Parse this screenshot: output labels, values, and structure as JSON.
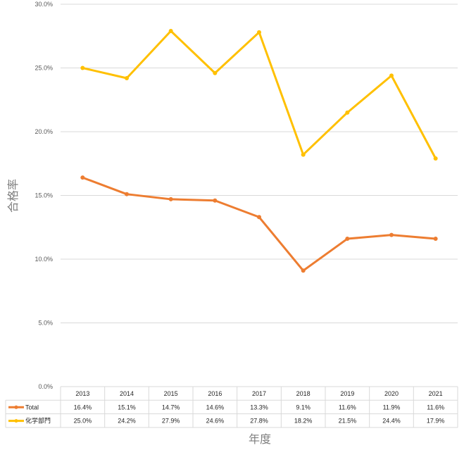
{
  "chart_data": {
    "type": "line",
    "title": "",
    "xlabel": "年度",
    "ylabel": "合格率",
    "ylim": [
      0,
      30
    ],
    "yticks": [
      "0.0%",
      "5.0%",
      "10.0%",
      "15.0%",
      "20.0%",
      "25.0%",
      "30.0%"
    ],
    "grid": true,
    "legend": "data-table",
    "categories": [
      "2013",
      "2014",
      "2015",
      "2016",
      "2017",
      "2018",
      "2019",
      "2020",
      "2021"
    ],
    "series": [
      {
        "name": "Total",
        "color": "#ED7D31",
        "values": [
          16.4,
          15.1,
          14.7,
          14.6,
          13.3,
          9.1,
          11.6,
          11.9,
          11.6
        ],
        "labels": [
          "16.4%",
          "15.1%",
          "14.7%",
          "14.6%",
          "13.3%",
          "9.1%",
          "11.6%",
          "11.9%",
          "11.6%"
        ]
      },
      {
        "name": "化学部門",
        "color": "#FFC000",
        "values": [
          25.0,
          24.2,
          27.9,
          24.6,
          27.8,
          18.2,
          21.5,
          24.4,
          17.9
        ],
        "labels": [
          "25.0%",
          "24.2%",
          "27.9%",
          "24.6%",
          "27.8%",
          "18.2%",
          "21.5%",
          "24.4%",
          "17.9%"
        ]
      }
    ]
  }
}
